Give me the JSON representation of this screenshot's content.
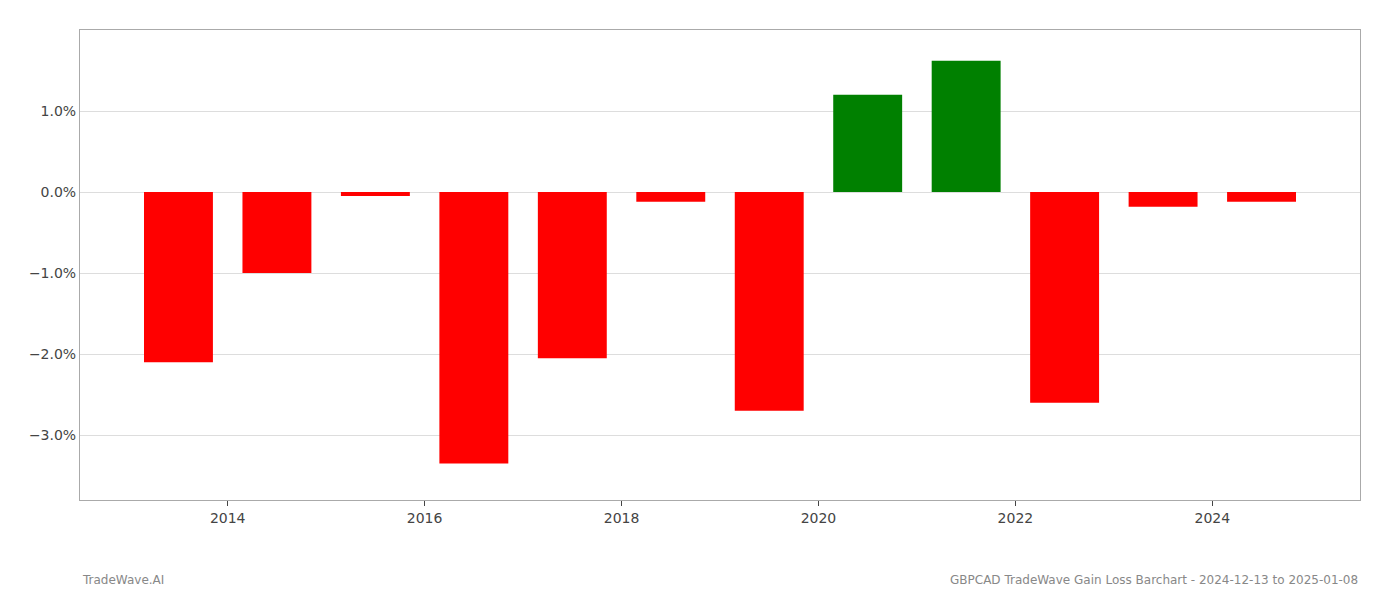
{
  "chart_data": {
    "type": "bar",
    "x": [
      2013.5,
      2014.5,
      2015.5,
      2016.5,
      2017.5,
      2018.5,
      2019.5,
      2020.5,
      2021.5,
      2022.5,
      2023.5,
      2024.5
    ],
    "values": [
      -2.1,
      -1.0,
      -0.05,
      -3.35,
      -2.05,
      -0.12,
      -2.7,
      1.2,
      1.62,
      -2.6,
      -0.18,
      -0.12
    ],
    "colors": [
      "#ff0000",
      "#ff0000",
      "#ff0000",
      "#ff0000",
      "#ff0000",
      "#ff0000",
      "#ff0000",
      "#008000",
      "#008000",
      "#ff0000",
      "#ff0000",
      "#ff0000"
    ],
    "xlim": [
      2012.5,
      2025.5
    ],
    "xticks": [
      2014,
      2016,
      2018,
      2020,
      2022,
      2024
    ],
    "ylim": [
      -3.8,
      2.0
    ],
    "yticks": [
      {
        "value": -3.0,
        "label": "−3.0%"
      },
      {
        "value": -2.0,
        "label": "−2.0%"
      },
      {
        "value": -1.0,
        "label": "−1.0%"
      },
      {
        "value": 0.0,
        "label": "0.0%"
      },
      {
        "value": 1.0,
        "label": "1.0%"
      }
    ],
    "grid": true,
    "annotations": [
      "TradeWave.AI",
      "GBPCAD TradeWave Gain Loss Barchart - 2024-12-13 to 2025-01-08"
    ]
  }
}
